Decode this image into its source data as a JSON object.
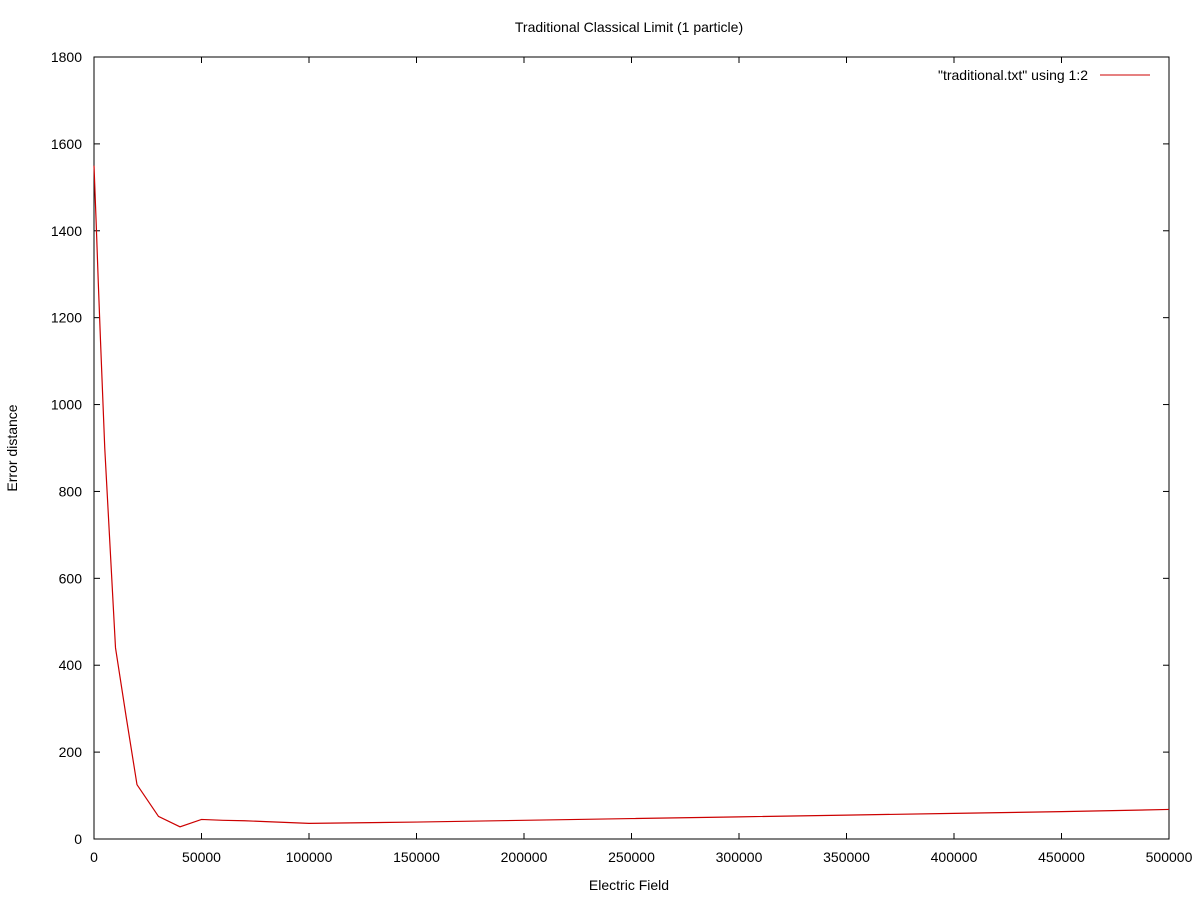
{
  "chart_data": {
    "type": "line",
    "title": "Traditional Classical Limit (1 particle)",
    "xlabel": "Electric Field",
    "ylabel": "Error distance",
    "xlim": [
      0,
      500000
    ],
    "ylim": [
      0,
      1800
    ],
    "xticks": [
      0,
      50000,
      100000,
      150000,
      200000,
      250000,
      300000,
      350000,
      400000,
      450000,
      500000
    ],
    "yticks": [
      0,
      200,
      400,
      600,
      800,
      1000,
      1200,
      1400,
      1600,
      1800
    ],
    "grid": false,
    "legend_position": "top-right",
    "series": [
      {
        "name": "\"traditional.txt\" using 1:2",
        "color": "#cc0000",
        "x": [
          0,
          1000,
          2000,
          3000,
          5000,
          10000,
          15000,
          20000,
          30000,
          40000,
          50000,
          60000,
          70000,
          80000,
          90000,
          100000,
          150000,
          200000,
          250000,
          300000,
          350000,
          400000,
          450000,
          500000
        ],
        "y": [
          1550,
          1420,
          1280,
          1150,
          900,
          440,
          280,
          125,
          52,
          28,
          45,
          43,
          42,
          40,
          38,
          36,
          39,
          43,
          47,
          51,
          55,
          59,
          63,
          68
        ]
      }
    ]
  }
}
